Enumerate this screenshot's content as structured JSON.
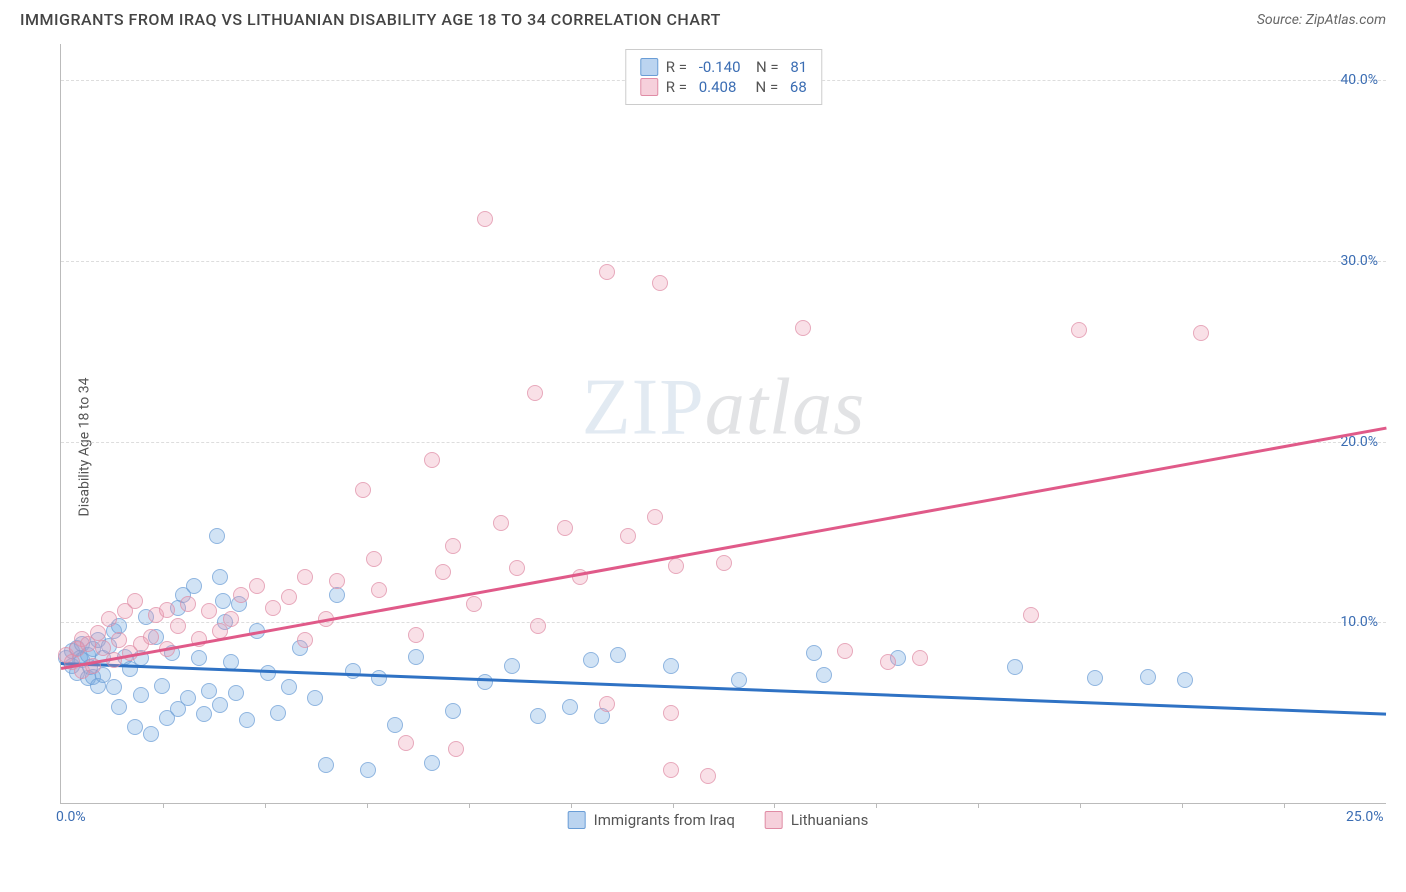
{
  "title": "IMMIGRANTS FROM IRAQ VS LITHUANIAN DISABILITY AGE 18 TO 34 CORRELATION CHART",
  "source": "Source: ZipAtlas.com",
  "watermark_zip": "ZIP",
  "watermark_atlas": "atlas",
  "chart": {
    "type": "scatter",
    "y_axis_label": "Disability Age 18 to 34",
    "xlim": [
      0,
      25
    ],
    "ylim": [
      0,
      42
    ],
    "x_ticks": [
      0,
      25
    ],
    "x_tick_labels": [
      "0.0%",
      "25.0%"
    ],
    "x_minor_ticks": [
      1.92,
      3.85,
      5.77,
      7.69,
      9.62,
      11.54,
      13.46,
      15.38,
      17.31,
      19.23,
      21.15,
      23.08
    ],
    "y_gridlines": [
      10,
      20,
      30,
      40
    ],
    "y_tick_labels": [
      "10.0%",
      "20.0%",
      "30.0%",
      "40.0%"
    ],
    "background_color": "#ffffff",
    "grid_color": "#dddddd",
    "axis_color": "#bbbbbb",
    "tick_label_color": "#3b6db3",
    "series": [
      {
        "name": "Immigrants from Iraq",
        "color_fill": "rgba(120,170,225,0.45)",
        "color_stroke": "#6a9dd6",
        "line_color": "#2f72c4",
        "R": "-0.140",
        "N": "81",
        "trend": {
          "x1": 0,
          "y1": 7.8,
          "x2": 25,
          "y2": 5.0
        },
        "points": [
          [
            0.1,
            8.0
          ],
          [
            0.2,
            7.6
          ],
          [
            0.2,
            8.4
          ],
          [
            0.3,
            7.2
          ],
          [
            0.3,
            8.6
          ],
          [
            0.35,
            8.0
          ],
          [
            0.4,
            7.9
          ],
          [
            0.4,
            8.8
          ],
          [
            0.5,
            6.9
          ],
          [
            0.5,
            8.2
          ],
          [
            0.55,
            7.5
          ],
          [
            0.6,
            7.0
          ],
          [
            0.6,
            8.5
          ],
          [
            0.7,
            9.0
          ],
          [
            0.7,
            6.5
          ],
          [
            0.8,
            8.0
          ],
          [
            0.8,
            7.1
          ],
          [
            0.9,
            8.7
          ],
          [
            1.0,
            9.5
          ],
          [
            1.0,
            6.4
          ],
          [
            1.1,
            9.8
          ],
          [
            1.1,
            5.3
          ],
          [
            1.2,
            8.1
          ],
          [
            1.3,
            7.4
          ],
          [
            1.4,
            4.2
          ],
          [
            1.5,
            8.0
          ],
          [
            1.5,
            6.0
          ],
          [
            1.6,
            10.3
          ],
          [
            1.7,
            3.8
          ],
          [
            1.8,
            9.2
          ],
          [
            1.9,
            6.5
          ],
          [
            2.0,
            4.7
          ],
          [
            2.1,
            8.3
          ],
          [
            2.2,
            10.8
          ],
          [
            2.2,
            5.2
          ],
          [
            2.3,
            11.5
          ],
          [
            2.4,
            5.8
          ],
          [
            2.5,
            12.0
          ],
          [
            2.6,
            8.0
          ],
          [
            2.7,
            4.9
          ],
          [
            2.8,
            6.2
          ],
          [
            2.95,
            14.8
          ],
          [
            3.0,
            12.5
          ],
          [
            3.0,
            5.4
          ],
          [
            3.05,
            11.2
          ],
          [
            3.1,
            10.0
          ],
          [
            3.2,
            7.8
          ],
          [
            3.3,
            6.1
          ],
          [
            3.35,
            11.0
          ],
          [
            3.5,
            4.6
          ],
          [
            3.7,
            9.5
          ],
          [
            3.9,
            7.2
          ],
          [
            4.1,
            5.0
          ],
          [
            4.3,
            6.4
          ],
          [
            4.5,
            8.6
          ],
          [
            4.8,
            5.8
          ],
          [
            5.0,
            2.1
          ],
          [
            5.2,
            11.5
          ],
          [
            5.5,
            7.3
          ],
          [
            5.8,
            1.8
          ],
          [
            6.0,
            6.9
          ],
          [
            6.3,
            4.3
          ],
          [
            6.7,
            8.1
          ],
          [
            7.0,
            2.2
          ],
          [
            7.4,
            5.1
          ],
          [
            8.0,
            6.7
          ],
          [
            8.5,
            7.6
          ],
          [
            9.0,
            4.8
          ],
          [
            9.6,
            5.3
          ],
          [
            10.0,
            7.9
          ],
          [
            10.2,
            4.8
          ],
          [
            10.5,
            8.2
          ],
          [
            11.5,
            7.6
          ],
          [
            12.8,
            6.8
          ],
          [
            14.2,
            8.3
          ],
          [
            14.4,
            7.1
          ],
          [
            15.8,
            8.0
          ],
          [
            18.0,
            7.5
          ],
          [
            19.5,
            6.9
          ],
          [
            20.5,
            7.0
          ],
          [
            21.2,
            6.8
          ]
        ]
      },
      {
        "name": "Lithuanians",
        "color_fill": "rgba(235,150,175,0.4)",
        "color_stroke": "#e08ca5",
        "line_color": "#e05a89",
        "R": "0.408",
        "N": "68",
        "trend": {
          "x1": 0,
          "y1": 7.5,
          "x2": 25,
          "y2": 20.8
        },
        "points": [
          [
            0.1,
            8.2
          ],
          [
            0.2,
            7.8
          ],
          [
            0.3,
            8.5
          ],
          [
            0.4,
            9.1
          ],
          [
            0.4,
            7.3
          ],
          [
            0.5,
            8.8
          ],
          [
            0.6,
            7.6
          ],
          [
            0.7,
            9.4
          ],
          [
            0.8,
            8.6
          ],
          [
            0.9,
            10.2
          ],
          [
            1.0,
            7.9
          ],
          [
            1.1,
            9.0
          ],
          [
            1.2,
            10.6
          ],
          [
            1.3,
            8.3
          ],
          [
            1.4,
            11.2
          ],
          [
            1.5,
            8.8
          ],
          [
            1.7,
            9.2
          ],
          [
            1.8,
            10.4
          ],
          [
            2.0,
            10.7
          ],
          [
            2.0,
            8.5
          ],
          [
            2.2,
            9.8
          ],
          [
            2.4,
            11.0
          ],
          [
            2.6,
            9.1
          ],
          [
            2.8,
            10.6
          ],
          [
            3.0,
            9.5
          ],
          [
            3.2,
            10.2
          ],
          [
            3.4,
            11.5
          ],
          [
            3.7,
            12.0
          ],
          [
            4.0,
            10.8
          ],
          [
            4.3,
            11.4
          ],
          [
            4.6,
            12.5
          ],
          [
            4.6,
            9.0
          ],
          [
            5.0,
            10.2
          ],
          [
            5.2,
            12.3
          ],
          [
            5.7,
            17.3
          ],
          [
            5.9,
            13.5
          ],
          [
            6.0,
            11.8
          ],
          [
            6.5,
            3.3
          ],
          [
            6.7,
            9.3
          ],
          [
            7.0,
            19.0
          ],
          [
            7.2,
            12.8
          ],
          [
            7.4,
            14.2
          ],
          [
            7.45,
            3.0
          ],
          [
            7.8,
            11.0
          ],
          [
            8.0,
            32.3
          ],
          [
            8.3,
            15.5
          ],
          [
            8.6,
            13.0
          ],
          [
            8.95,
            22.7
          ],
          [
            9.0,
            9.8
          ],
          [
            9.5,
            15.2
          ],
          [
            9.8,
            12.5
          ],
          [
            10.3,
            29.4
          ],
          [
            10.3,
            5.5
          ],
          [
            10.7,
            14.8
          ],
          [
            11.2,
            15.8
          ],
          [
            11.3,
            28.8
          ],
          [
            11.5,
            5.0
          ],
          [
            11.6,
            13.1
          ],
          [
            12.2,
            1.5
          ],
          [
            12.5,
            13.3
          ],
          [
            14.0,
            26.3
          ],
          [
            14.8,
            8.4
          ],
          [
            15.6,
            7.8
          ],
          [
            16.2,
            8.0
          ],
          [
            18.3,
            10.4
          ],
          [
            19.2,
            26.2
          ],
          [
            21.5,
            26.0
          ],
          [
            11.5,
            1.8
          ]
        ]
      }
    ]
  },
  "legend_bottom": [
    {
      "label": "Immigrants from Iraq",
      "class": "blue"
    },
    {
      "label": "Lithuanians",
      "class": "pink"
    }
  ]
}
